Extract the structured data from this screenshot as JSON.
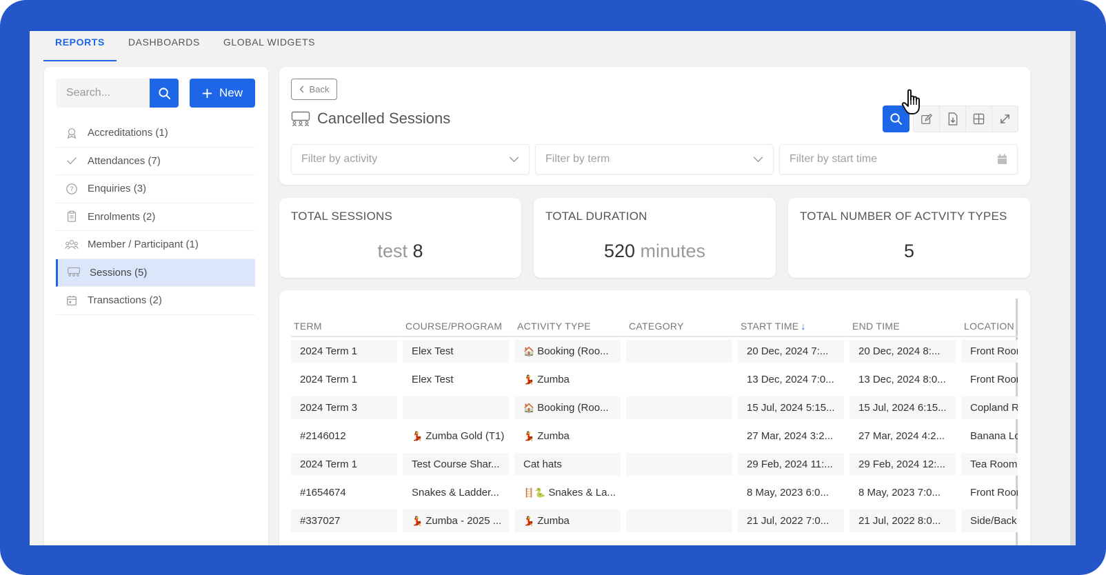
{
  "top_tabs": [
    {
      "label": "REPORTS",
      "active": true
    },
    {
      "label": "DASHBOARDS",
      "active": false
    },
    {
      "label": "GLOBAL WIDGETS",
      "active": false
    }
  ],
  "sidebar": {
    "search_placeholder": "Search...",
    "new_label": "New",
    "items": [
      {
        "label": "Accreditations (1)",
        "icon": "badge-icon"
      },
      {
        "label": "Attendances (7)",
        "icon": "check-icon"
      },
      {
        "label": "Enquiries (3)",
        "icon": "question-icon"
      },
      {
        "label": "Enrolments (2)",
        "icon": "clipboard-icon"
      },
      {
        "label": "Member / Participant (1)",
        "icon": "people-icon"
      },
      {
        "label": "Sessions (5)",
        "icon": "sessions-icon",
        "active": true
      },
      {
        "label": "Transactions (2)",
        "icon": "calendar-icon"
      }
    ]
  },
  "header": {
    "back_label": "Back",
    "title": "Cancelled Sessions",
    "filters": {
      "activity": "Filter by activity",
      "term": "Filter by term",
      "start_time": "Filter by start time"
    }
  },
  "stats": [
    {
      "label": "TOTAL SESSIONS",
      "prefix": "test",
      "value": "8",
      "suffix": ""
    },
    {
      "label": "TOTAL DURATION",
      "prefix": "",
      "value": "520",
      "suffix": "minutes"
    },
    {
      "label": "TOTAL NUMBER OF ACTVITY TYPES",
      "prefix": "",
      "value": "5",
      "suffix": ""
    }
  ],
  "table": {
    "columns": [
      "TERM",
      "COURSE/PROGRAM",
      "ACTIVITY TYPE",
      "CATEGORY",
      "START TIME",
      "END TIME",
      "LOCATION"
    ],
    "rows": [
      {
        "term": "2024 Term 1",
        "course": "Elex Test",
        "course_icon": "",
        "activity": "Booking (Roo...",
        "activity_icon": "🏠",
        "category": "",
        "start": "20 Dec, 2024  7:...",
        "end": "20 Dec, 2024  8:...",
        "location": "Front Room"
      },
      {
        "term": "2024 Term 1",
        "course": "Elex Test",
        "course_icon": "",
        "activity": "Zumba",
        "activity_icon": "💃",
        "category": "",
        "start": "13 Dec, 2024  7:0...",
        "end": "13 Dec, 2024  8:0...",
        "location": "Front Room"
      },
      {
        "term": "2024 Term 3",
        "course": "",
        "course_icon": "",
        "activity": "Booking (Roo...",
        "activity_icon": "🏠",
        "category": "",
        "start": "15 Jul, 2024  5:15...",
        "end": "15 Jul, 2024  6:15...",
        "location": "Copland R"
      },
      {
        "term": "#2146012",
        "course": "Zumba Gold (T1)",
        "course_icon": "💃",
        "activity": "Zumba",
        "activity_icon": "💃",
        "category": "",
        "start": "27 Mar, 2024  3:2...",
        "end": "27 Mar, 2024  4:2...",
        "location": "Banana Lo"
      },
      {
        "term": "2024 Term 1",
        "course": "Test Course Shar...",
        "course_icon": "",
        "activity": "Cat hats",
        "activity_icon": "",
        "category": "",
        "start": "29 Feb, 2024  11:...",
        "end": "29 Feb, 2024  12:...",
        "location": "Tea Room"
      },
      {
        "term": "#1654674",
        "course": "Snakes & Ladder...",
        "course_icon": "",
        "activity": "Snakes & La...",
        "activity_icon": "🪜🐍",
        "category": "",
        "start": "8 May, 2023  6:0...",
        "end": "8 May, 2023  7:0...",
        "location": "Front Room"
      },
      {
        "term": "#337027",
        "course": "Zumba - 2025 ...",
        "course_icon": "💃",
        "activity": "Zumba",
        "activity_icon": "💃",
        "category": "",
        "start": "21 Jul, 2022  7:0...",
        "end": "21 Jul, 2022  8:0...",
        "location": "Side/Back"
      }
    ]
  },
  "colors": {
    "accent": "#1e66e8",
    "frame": "#2556c9",
    "active_nav": "#dbe6fb"
  }
}
